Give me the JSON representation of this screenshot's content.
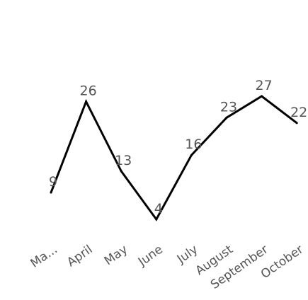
{
  "chart_data": {
    "type": "line",
    "title": "",
    "xlabel": "",
    "ylabel": "",
    "categories": [
      "Ma...",
      "April",
      "May",
      "June",
      "July",
      "August",
      "September",
      "October"
    ],
    "series": [
      {
        "values": [
          9,
          26,
          13,
          4,
          16,
          23,
          27,
          22
        ]
      }
    ],
    "ylim": [
      4,
      27
    ],
    "grid": false,
    "legend": "none",
    "line_color": "#000000",
    "label_color": "#555555"
  }
}
